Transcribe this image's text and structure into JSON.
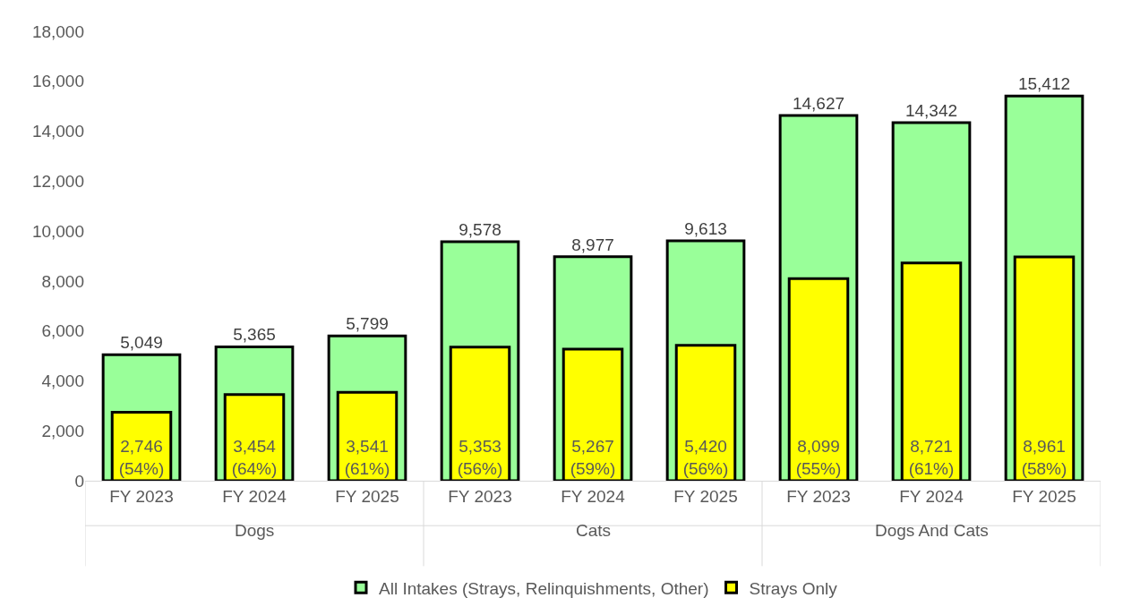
{
  "chart_data": {
    "type": "bar",
    "categories": [
      "FY 2023",
      "FY 2024",
      "FY 2025",
      "FY 2023",
      "FY 2024",
      "FY 2025",
      "FY 2023",
      "FY 2024",
      "FY 2025"
    ],
    "series": [
      {
        "name": "All Intakes (Strays, Relinquishments, Other)",
        "color": "#99ff99",
        "values": [
          5049,
          5365,
          5799,
          9578,
          8977,
          9613,
          14627,
          14342,
          15412
        ],
        "value_labels": [
          "5,049",
          "5,365",
          "5,799",
          "9,578",
          "8,977",
          "9,613",
          "14,627",
          "14,342",
          "15,412"
        ]
      },
      {
        "name": "Strays Only",
        "color": "#ffff00",
        "values": [
          2746,
          3454,
          3541,
          5353,
          5267,
          5420,
          8099,
          8721,
          8961
        ],
        "value_labels": [
          "2,746\n(54%)",
          "3,454\n(64%)",
          "3,541\n(61%)",
          "5,353\n(56%)",
          "5,267\n(59%)",
          "5,420\n(56%)",
          "8,099\n(55%)",
          "8,721\n(61%)",
          "8,961\n(58%)"
        ]
      }
    ],
    "annotations": [
      "Dogs",
      "Cats",
      "Dogs And Cats"
    ],
    "ylim": [
      0,
      18000
    ],
    "yticks": [
      {
        "value": 0,
        "label": "0"
      },
      {
        "value": 2000,
        "label": "2,000"
      },
      {
        "value": 4000,
        "label": "4,000"
      },
      {
        "value": 6000,
        "label": "6,000"
      },
      {
        "value": 8000,
        "label": "8,000"
      },
      {
        "value": 10000,
        "label": "10,000"
      },
      {
        "value": 12000,
        "label": "12,000"
      },
      {
        "value": 14000,
        "label": "14,000"
      },
      {
        "value": 16000,
        "label": "16,000"
      },
      {
        "value": 18000,
        "label": "18,000"
      }
    ],
    "grid": false,
    "legend": "bottom"
  }
}
